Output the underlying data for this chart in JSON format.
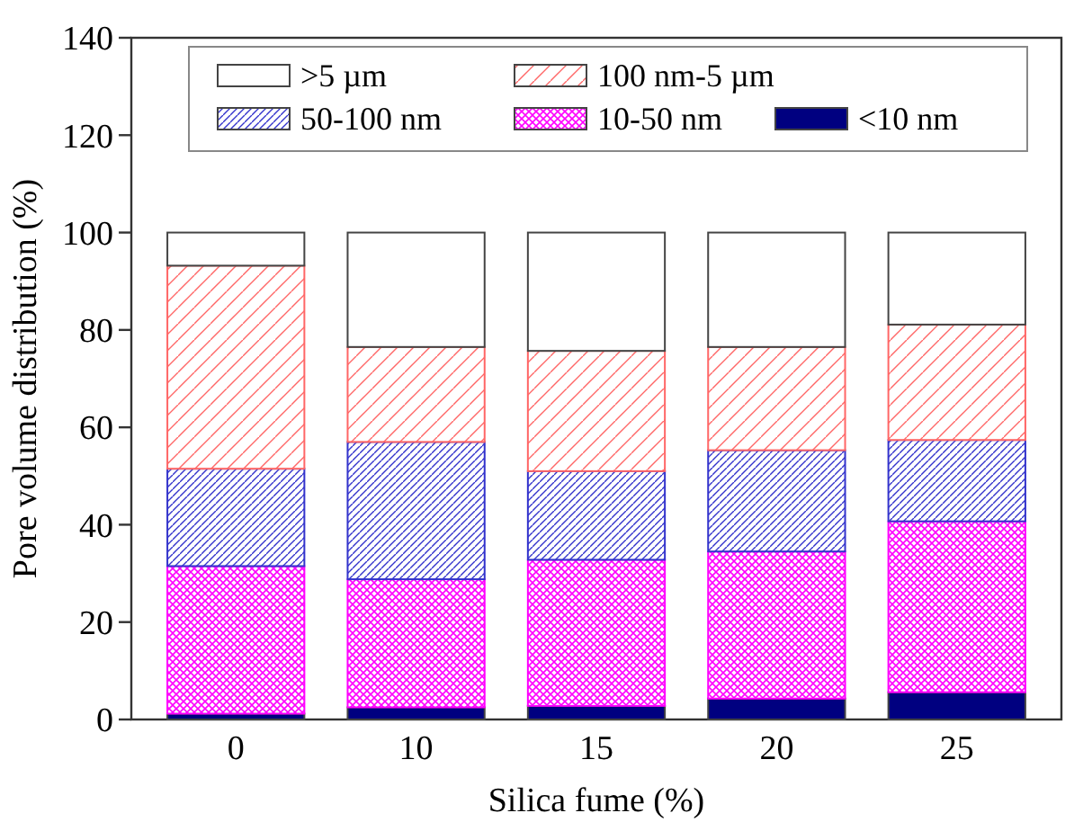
{
  "chart_data": {
    "type": "bar",
    "stacked": true,
    "xlabel": "Silica fume (%)",
    "ylabel": "Pore volume distribution (%)",
    "categories": [
      "0",
      "10",
      "15",
      "20",
      "25"
    ],
    "series": [
      {
        "name": "<10 nm",
        "color": "#000080",
        "values": [
          1.2,
          2.5,
          2.8,
          4.3,
          5.6
        ]
      },
      {
        "name": "10-50 nm",
        "color": "#ff00ff",
        "values": [
          30.3,
          26.3,
          30.0,
          30.2,
          35.1
        ]
      },
      {
        "name": "50-100 nm",
        "color": "#3333cc",
        "values": [
          20.0,
          28.2,
          18.2,
          20.8,
          16.7
        ]
      },
      {
        "name": "100 nm-5 µm",
        "color": "#ff6666",
        "values": [
          41.7,
          19.5,
          24.7,
          21.2,
          23.7
        ]
      },
      {
        "name": ">5 µm",
        "color": "#ffffff",
        "values": [
          6.8,
          23.5,
          24.3,
          23.5,
          18.9
        ]
      }
    ],
    "ylim": [
      0,
      140
    ],
    "yticks": [
      0,
      20,
      40,
      60,
      80,
      100,
      120,
      140
    ],
    "legend": "top"
  }
}
